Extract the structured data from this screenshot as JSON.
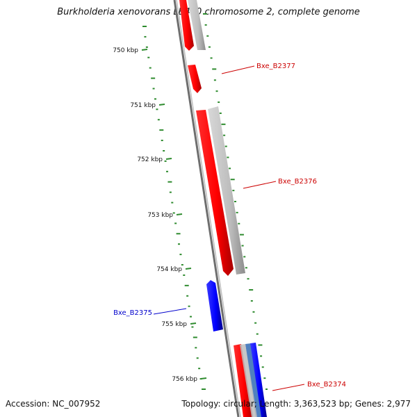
{
  "title": "Burkholderia xenovorans LB400 chromosome 2, complete genome",
  "accession": "Accession: NC_007952",
  "summary": "Topology: circular; Length: 3,363,523 bp; Genes: 2,977",
  "colors": {
    "forward_cds": "#ff0000",
    "reverse_cds": "#0000ff",
    "gene_track": "#bdbdbd",
    "backbone": "#808080",
    "gc_ticks": "#2e8b2e",
    "forward_label": "#cc0000",
    "reverse_label": "#0000cc"
  },
  "ticks": [
    {
      "label": "750 kbp"
    },
    {
      "label": "751 kbp"
    },
    {
      "label": "752 kbp"
    },
    {
      "label": "753 kbp"
    },
    {
      "label": "754 kbp"
    },
    {
      "label": "755 kbp"
    },
    {
      "label": "756 kbp"
    }
  ],
  "genes": [
    {
      "name": "Bxe_B2377",
      "strand": "forward"
    },
    {
      "name": "Bxe_B2376",
      "strand": "forward"
    },
    {
      "name": "Bxe_B2375",
      "strand": "reverse"
    },
    {
      "name": "Bxe_B2374",
      "strand": "forward"
    }
  ]
}
